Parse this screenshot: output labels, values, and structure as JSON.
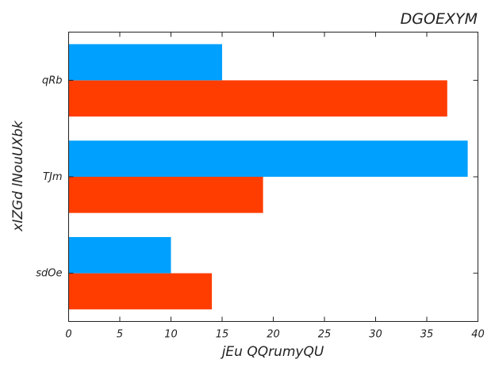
{
  "chart_data": {
    "type": "bar",
    "orientation": "horizontal",
    "title": "DGOEXYM",
    "xlabel": "jEu  QQrumyQU",
    "ylabel": "xIZGd lNouUXbk",
    "categories": [
      "sdOe",
      "TJm",
      "qRb"
    ],
    "series": [
      {
        "color": "#ff3d00",
        "values": [
          14,
          19,
          37
        ]
      },
      {
        "color": "#00a0ff",
        "values": [
          10,
          39,
          15
        ]
      }
    ],
    "xlim": [
      0,
      40
    ],
    "xticks": [
      0,
      5,
      10,
      15,
      20,
      25,
      30,
      35,
      40
    ],
    "grid": false
  }
}
